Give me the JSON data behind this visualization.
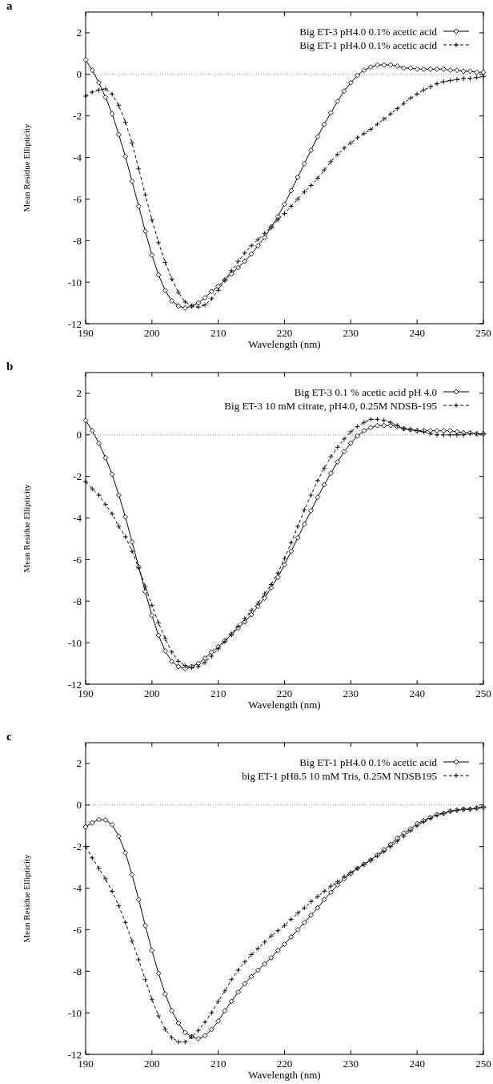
{
  "chart_data": [
    {
      "type": "line",
      "annotations": [
        "a"
      ],
      "xlabel": "Wavelength (nm)",
      "ylabel": "Mean Residue Ellipticity",
      "xlim": [
        190,
        250
      ],
      "ylim": [
        -12,
        3
      ],
      "xticks": [
        190,
        200,
        210,
        220,
        230,
        240,
        250
      ],
      "yticks": [
        -12,
        -10,
        -8,
        -6,
        -4,
        -2,
        0,
        2
      ],
      "legend": "top right",
      "ref_lines": [
        {
          "axis": "y",
          "value": 0,
          "line_style": "dotted",
          "color": "#555555"
        }
      ],
      "x": [
        190,
        191,
        192,
        193,
        194,
        195,
        196,
        197,
        198,
        199,
        200,
        201,
        202,
        203,
        204,
        205,
        206,
        207,
        208,
        209,
        210,
        211,
        212,
        213,
        214,
        215,
        216,
        217,
        218,
        219,
        220,
        221,
        222,
        223,
        224,
        225,
        226,
        227,
        228,
        229,
        230,
        231,
        232,
        233,
        234,
        235,
        236,
        237,
        238,
        239,
        240,
        241,
        242,
        243,
        244,
        245,
        246,
        247,
        248,
        249,
        250
      ],
      "series": [
        {
          "name": "Big ET-3 pH4.0 0.1% acetic acid",
          "color": "#000000",
          "marker": "diamond",
          "line_style": "solid",
          "values": [
            0.7,
            0.2,
            -0.4,
            -1.1,
            -1.9,
            -2.9,
            -3.95,
            -5.15,
            -6.35,
            -7.55,
            -8.7,
            -9.65,
            -10.4,
            -10.9,
            -11.15,
            -11.25,
            -11.15,
            -11.0,
            -10.75,
            -10.45,
            -10.2,
            -9.9,
            -9.6,
            -9.3,
            -9.0,
            -8.65,
            -8.25,
            -7.85,
            -7.35,
            -6.85,
            -6.25,
            -5.6,
            -4.95,
            -4.3,
            -3.65,
            -3.0,
            -2.4,
            -1.85,
            -1.3,
            -0.8,
            -0.4,
            -0.05,
            0.2,
            0.35,
            0.45,
            0.45,
            0.45,
            0.4,
            0.3,
            0.3,
            0.25,
            0.25,
            0.25,
            0.25,
            0.25,
            0.2,
            0.2,
            0.15,
            0.15,
            0.1,
            0.1
          ]
        },
        {
          "name": "Big ET-1 pH4.0 0.1% acetic acid",
          "color": "#000000",
          "marker": "cross",
          "line_style": "dashed",
          "values": [
            -1.05,
            -0.85,
            -0.75,
            -0.7,
            -0.95,
            -1.5,
            -2.3,
            -3.3,
            -4.55,
            -5.8,
            -7.0,
            -8.1,
            -9.05,
            -9.85,
            -10.5,
            -10.95,
            -11.15,
            -11.2,
            -11.1,
            -10.8,
            -10.4,
            -9.9,
            -9.45,
            -9.0,
            -8.6,
            -8.25,
            -7.95,
            -7.65,
            -7.35,
            -7.0,
            -6.7,
            -6.35,
            -6.0,
            -5.65,
            -5.35,
            -5.0,
            -4.6,
            -4.2,
            -3.85,
            -3.55,
            -3.3,
            -3.05,
            -2.85,
            -2.65,
            -2.4,
            -2.15,
            -1.9,
            -1.65,
            -1.4,
            -1.15,
            -0.95,
            -0.75,
            -0.6,
            -0.45,
            -0.35,
            -0.3,
            -0.25,
            -0.2,
            -0.2,
            -0.15,
            -0.1
          ]
        }
      ]
    },
    {
      "type": "line",
      "annotations": [
        "b"
      ],
      "xlabel": "Wavelength (nm)",
      "ylabel": "Mean Residue Ellipticity",
      "xlim": [
        190,
        250
      ],
      "ylim": [
        -12,
        3
      ],
      "xticks": [
        190,
        200,
        210,
        220,
        230,
        240,
        250
      ],
      "yticks": [
        -12,
        -10,
        -8,
        -6,
        -4,
        -2,
        0,
        2
      ],
      "legend": "top right",
      "ref_lines": [
        {
          "axis": "y",
          "value": 0,
          "line_style": "dotted",
          "color": "#555555"
        }
      ],
      "x": [
        190,
        191,
        192,
        193,
        194,
        195,
        196,
        197,
        198,
        199,
        200,
        201,
        202,
        203,
        204,
        205,
        206,
        207,
        208,
        209,
        210,
        211,
        212,
        213,
        214,
        215,
        216,
        217,
        218,
        219,
        220,
        221,
        222,
        223,
        224,
        225,
        226,
        227,
        228,
        229,
        230,
        231,
        232,
        233,
        234,
        235,
        236,
        237,
        238,
        239,
        240,
        241,
        242,
        243,
        244,
        245,
        246,
        247,
        248,
        249,
        250
      ],
      "series": [
        {
          "name": "Big ET-3 0.1 % acetic acid pH 4.0",
          "color": "#000000",
          "marker": "diamond",
          "line_style": "solid",
          "values": [
            0.7,
            0.2,
            -0.4,
            -1.1,
            -1.9,
            -2.9,
            -3.95,
            -5.15,
            -6.35,
            -7.55,
            -8.7,
            -9.65,
            -10.4,
            -10.9,
            -11.15,
            -11.25,
            -11.15,
            -11.0,
            -10.75,
            -10.45,
            -10.2,
            -9.9,
            -9.6,
            -9.3,
            -9.0,
            -8.65,
            -8.25,
            -7.85,
            -7.35,
            -6.85,
            -6.25,
            -5.6,
            -4.95,
            -4.3,
            -3.65,
            -3.0,
            -2.4,
            -1.85,
            -1.3,
            -0.8,
            -0.4,
            -0.05,
            0.2,
            0.35,
            0.45,
            0.45,
            0.45,
            0.4,
            0.3,
            0.25,
            0.2,
            0.2,
            0.2,
            0.2,
            0.2,
            0.2,
            0.15,
            0.1,
            0.1,
            0.05,
            0.05
          ]
        },
        {
          "name": "Big ET-3 10 mM citrate, pH4.0, 0.25M NDSB-195",
          "color": "#000000",
          "marker": "cross",
          "line_style": "dashed",
          "values": [
            -2.25,
            -2.6,
            -2.9,
            -3.35,
            -3.8,
            -4.4,
            -4.9,
            -5.6,
            -6.4,
            -7.3,
            -8.2,
            -9.05,
            -9.8,
            -10.45,
            -10.9,
            -11.1,
            -11.2,
            -11.15,
            -10.95,
            -10.65,
            -10.3,
            -9.95,
            -9.6,
            -9.2,
            -8.85,
            -8.45,
            -8.1,
            -7.65,
            -7.2,
            -6.65,
            -5.95,
            -5.2,
            -4.4,
            -3.6,
            -2.9,
            -2.2,
            -1.6,
            -1.05,
            -0.6,
            -0.2,
            0.15,
            0.4,
            0.6,
            0.75,
            0.75,
            0.7,
            0.6,
            0.45,
            0.3,
            0.25,
            0.2,
            0.15,
            0.05,
            0.0,
            0.0,
            0.0,
            0.0,
            0.0,
            0.05,
            0.05,
            0.05
          ]
        }
      ]
    },
    {
      "type": "line",
      "annotations": [
        "c"
      ],
      "xlabel": "Wavelength (nm)",
      "ylabel": "Mean Residue Ellipticity",
      "xlim": [
        190,
        250
      ],
      "ylim": [
        -12,
        3
      ],
      "xticks": [
        190,
        200,
        210,
        220,
        230,
        240,
        250
      ],
      "yticks": [
        -12,
        -10,
        -8,
        -6,
        -4,
        -2,
        0,
        2
      ],
      "legend": "top right",
      "ref_lines": [
        {
          "axis": "y",
          "value": 0,
          "line_style": "dotted",
          "color": "#555555"
        }
      ],
      "x": [
        190,
        191,
        192,
        193,
        194,
        195,
        196,
        197,
        198,
        199,
        200,
        201,
        202,
        203,
        204,
        205,
        206,
        207,
        208,
        209,
        210,
        211,
        212,
        213,
        214,
        215,
        216,
        217,
        218,
        219,
        220,
        221,
        222,
        223,
        224,
        225,
        226,
        227,
        228,
        229,
        230,
        231,
        232,
        233,
        234,
        235,
        236,
        237,
        238,
        239,
        240,
        241,
        242,
        243,
        244,
        245,
        246,
        247,
        248,
        249,
        250
      ],
      "series": [
        {
          "name": "Big ET-1 pH4.0 0.1% acetic acid",
          "color": "#000000",
          "marker": "diamond",
          "line_style": "solid",
          "values": [
            -1.05,
            -0.85,
            -0.7,
            -0.72,
            -0.95,
            -1.5,
            -2.3,
            -3.35,
            -4.55,
            -5.8,
            -7.0,
            -8.1,
            -9.1,
            -9.9,
            -10.5,
            -10.95,
            -11.15,
            -11.25,
            -11.1,
            -10.8,
            -10.4,
            -9.9,
            -9.45,
            -9.0,
            -8.6,
            -8.25,
            -7.95,
            -7.65,
            -7.35,
            -7.0,
            -6.7,
            -6.35,
            -6.0,
            -5.65,
            -5.3,
            -4.95,
            -4.55,
            -4.2,
            -3.85,
            -3.55,
            -3.3,
            -3.05,
            -2.85,
            -2.65,
            -2.4,
            -2.15,
            -1.9,
            -1.6,
            -1.35,
            -1.15,
            -0.9,
            -0.75,
            -0.6,
            -0.45,
            -0.4,
            -0.3,
            -0.25,
            -0.2,
            -0.2,
            -0.15,
            -0.1
          ]
        },
        {
          "name": "big ET-1 pH8.5 10 mM Tris, 0.25M NDSB195",
          "color": "#000000",
          "marker": "cross",
          "line_style": "dashed",
          "values": [
            -2.0,
            -2.55,
            -3.05,
            -3.55,
            -4.15,
            -4.85,
            -5.65,
            -6.55,
            -7.45,
            -8.4,
            -9.35,
            -10.15,
            -10.8,
            -11.2,
            -11.4,
            -11.4,
            -11.15,
            -10.85,
            -10.45,
            -10.0,
            -9.45,
            -8.95,
            -8.4,
            -7.95,
            -7.55,
            -7.2,
            -6.9,
            -6.6,
            -6.3,
            -6.05,
            -5.8,
            -5.5,
            -5.2,
            -4.95,
            -4.65,
            -4.4,
            -4.15,
            -3.9,
            -3.7,
            -3.45,
            -3.25,
            -3.05,
            -2.85,
            -2.65,
            -2.45,
            -2.25,
            -2.0,
            -1.75,
            -1.5,
            -1.25,
            -1.0,
            -0.8,
            -0.65,
            -0.5,
            -0.4,
            -0.3,
            -0.25,
            -0.2,
            -0.2,
            -0.15,
            -0.1
          ]
        }
      ]
    }
  ]
}
